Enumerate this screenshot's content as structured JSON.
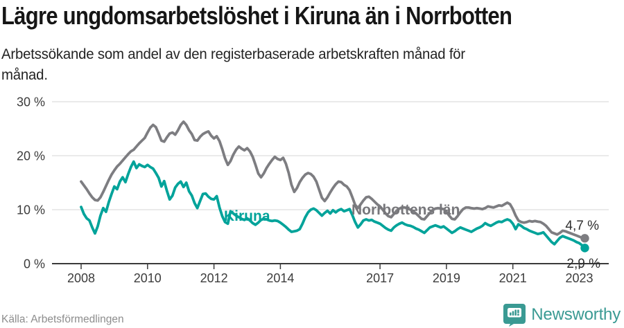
{
  "header": {
    "title": "Lägre ungdomsarbetslöshet i Kiruna än i Norrbotten",
    "subtitle": "Arbetssökande som andel av den registerbaserade arbetskraften månad för\nmånad."
  },
  "chart_data": {
    "type": "line",
    "title": "Lägre ungdomsarbetslöshet i Kiruna än i Norrbotten",
    "subtitle": "Arbetssökande som andel av den registerbaserade arbetskraften månad för månad.",
    "x_unit": "month",
    "x_start": "2008-01",
    "x_end": "2023-03",
    "grid": true,
    "ylim": [
      0,
      30
    ],
    "y_ticks": [
      {
        "value": 0,
        "label": "0 %"
      },
      {
        "value": 10,
        "label": "10 %"
      },
      {
        "value": 20,
        "label": "20 %"
      },
      {
        "value": 30,
        "label": "30 %"
      }
    ],
    "x_ticks": [
      {
        "year": 2008,
        "label": "2008"
      },
      {
        "year": 2010,
        "label": "2010"
      },
      {
        "year": 2012,
        "label": "2012"
      },
      {
        "year": 2014,
        "label": "2014"
      },
      {
        "year": 2017,
        "label": "2017"
      },
      {
        "year": 2019,
        "label": "2019"
      },
      {
        "year": 2021,
        "label": "2021"
      },
      {
        "year": 2023,
        "label": "2023"
      }
    ],
    "series": [
      {
        "name": "Norrbottens län",
        "color": "#7d7d81",
        "end_label": "4,7 %",
        "end_value": 4.7,
        "values": [
          15.2,
          14.5,
          13.8,
          13.0,
          12.3,
          11.8,
          11.7,
          12.3,
          13.3,
          14.4,
          15.5,
          16.5,
          17.3,
          18.0,
          18.5,
          19.1,
          19.7,
          20.3,
          20.8,
          21.1,
          21.7,
          22.3,
          22.8,
          23.3,
          24.3,
          25.2,
          25.7,
          25.3,
          24.1,
          22.8,
          22.6,
          23.4,
          24.1,
          24.3,
          23.9,
          24.7,
          25.7,
          26.3,
          25.7,
          24.7,
          24.0,
          22.9,
          22.8,
          23.5,
          24.0,
          24.3,
          24.5,
          23.7,
          23.2,
          23.6,
          22.7,
          21.2,
          19.5,
          18.3,
          19.0,
          20.2,
          21.1,
          21.7,
          21.3,
          21.0,
          21.4,
          20.8,
          19.8,
          18.3,
          16.7,
          16.0,
          16.7,
          17.7,
          18.5,
          19.2,
          19.8,
          19.4,
          19.2,
          19.6,
          18.5,
          16.8,
          14.6,
          13.3,
          14.0,
          15.1,
          15.9,
          16.5,
          16.8,
          16.6,
          16.1,
          15.2,
          13.7,
          12.2,
          11.6,
          12.3,
          13.2,
          14.0,
          14.7,
          15.2,
          15.1,
          14.6,
          14.3,
          13.6,
          12.3,
          10.9,
          10.3,
          11.0,
          11.7,
          12.3,
          12.4,
          12.0,
          11.5,
          11.0,
          10.6,
          10.0,
          9.3,
          8.8,
          8.6,
          9.2,
          9.8,
          10.2,
          10.4,
          10.4,
          10.2,
          10.0,
          9.7,
          9.3,
          8.8,
          8.3,
          8.2,
          8.8,
          9.4,
          9.9,
          10.2,
          10.3,
          10.2,
          10.1,
          9.6,
          8.9,
          8.3,
          8.2,
          8.8,
          9.5,
          10.1,
          10.4,
          10.4,
          10.3,
          10.2,
          10.3,
          10.2,
          10.1,
          10.3,
          10.6,
          10.5,
          10.4,
          10.6,
          10.8,
          10.7,
          11.0,
          11.3,
          11.0,
          10.1,
          8.9,
          8.0,
          7.7,
          7.6,
          7.7,
          7.9,
          7.8,
          7.9,
          7.8,
          7.7,
          7.4,
          7.0,
          6.4,
          5.8,
          5.6,
          5.4,
          5.7,
          6.1,
          6.0,
          5.8,
          5.6,
          5.4,
          5.2,
          5.0,
          4.8,
          4.7
        ]
      },
      {
        "name": "Kiruna",
        "color": "#00a39a",
        "end_label": "2,9 %",
        "end_value": 2.9,
        "values": [
          10.5,
          9.2,
          8.4,
          8.0,
          6.7,
          5.6,
          6.9,
          8.9,
          10.3,
          9.6,
          11.4,
          12.9,
          14.3,
          13.8,
          15.2,
          16.0,
          15.1,
          16.6,
          17.9,
          18.9,
          17.7,
          18.4,
          18.1,
          17.9,
          18.3,
          17.9,
          17.6,
          16.8,
          15.9,
          14.3,
          15.3,
          13.5,
          11.9,
          12.6,
          14.1,
          14.8,
          15.2,
          14.2,
          15.0,
          13.4,
          12.6,
          11.2,
          10.3,
          11.6,
          12.9,
          13.0,
          12.4,
          12.0,
          11.9,
          12.5,
          10.4,
          8.8,
          7.7,
          7.4,
          9.7,
          9.3,
          8.9,
          8.6,
          8.3,
          8.1,
          8.4,
          8.0,
          7.5,
          7.2,
          7.6,
          8.1,
          8.3,
          8.2,
          8.0,
          7.9,
          8.0,
          7.9,
          7.6,
          7.2,
          6.8,
          6.3,
          5.9,
          6.0,
          6.1,
          6.4,
          7.4,
          8.6,
          9.5,
          10.0,
          10.2,
          9.9,
          9.4,
          8.9,
          9.4,
          9.8,
          9.3,
          9.9,
          9.5,
          9.9,
          10.1,
          9.7,
          9.9,
          10.1,
          9.0,
          7.7,
          6.7,
          7.3,
          8.0,
          8.2,
          8.0,
          8.1,
          7.8,
          7.6,
          7.4,
          7.0,
          6.6,
          6.3,
          6.1,
          6.7,
          7.1,
          7.4,
          7.6,
          7.3,
          7.1,
          7.0,
          6.8,
          6.5,
          6.3,
          6.0,
          5.7,
          6.2,
          6.7,
          6.9,
          7.1,
          6.9,
          6.7,
          6.9,
          6.5,
          6.1,
          5.7,
          6.0,
          6.4,
          6.7,
          6.5,
          6.3,
          6.1,
          5.9,
          6.2,
          6.5,
          6.7,
          7.0,
          7.5,
          7.2,
          7.0,
          7.3,
          7.6,
          7.8,
          7.7,
          8.0,
          8.2,
          8.0,
          7.4,
          6.4,
          7.3,
          7.0,
          6.6,
          6.4,
          6.1,
          5.9,
          5.7,
          5.5,
          5.6,
          5.8,
          5.2,
          4.6,
          4.0,
          3.6,
          4.2,
          4.8,
          5.1,
          4.9,
          4.7,
          4.5,
          4.3,
          4.0,
          3.8,
          3.4,
          2.9
        ]
      }
    ],
    "colors": {
      "kiruna": "#00a39a",
      "norrbotten": "#7d7d81",
      "grid": "#dedede",
      "axis": "#3a3a3a",
      "tick_text": "#3c3c3c"
    }
  },
  "footer": {
    "source": "Källa: Arbetsförmedlingen",
    "brand": "Newsworthy"
  }
}
